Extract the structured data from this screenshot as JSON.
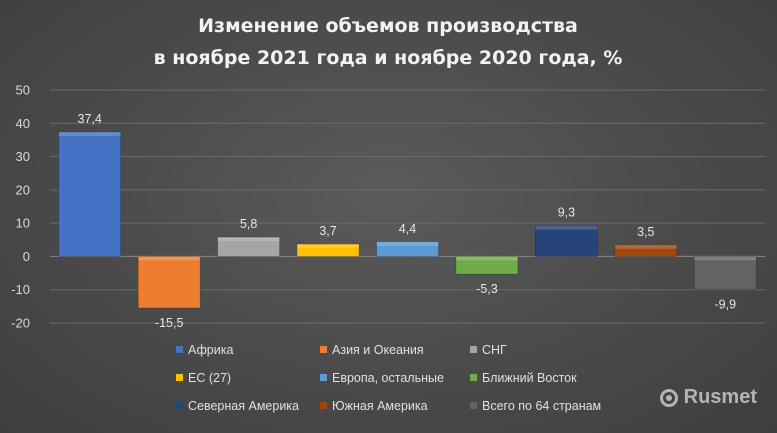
{
  "chart_data": {
    "type": "bar",
    "title": "Изменение объемов производства\nв ноябре 2021 года и ноябре 2020 года, %",
    "title_lines": [
      "Изменение объемов производства",
      "в ноябре 2021 года и ноябре 2020 года, %"
    ],
    "categories": [
      "Африка",
      "Азия и Океания",
      "СНГ",
      "ЕС (27)",
      "Европа, остальные",
      "Ближний Восток",
      "Северная Америка",
      "Южная Америка",
      "Всего по 64 странам"
    ],
    "values": [
      37.4,
      -15.5,
      5.8,
      3.7,
      4.4,
      -5.3,
      9.3,
      3.5,
      -9.9
    ],
    "data_labels": [
      "37,4",
      "-15,5",
      "5,8",
      "3,7",
      "4,4",
      "-5,3",
      "9,3",
      "3,5",
      "-9,9"
    ],
    "colors": [
      "#4472c4",
      "#ed7d31",
      "#a5a5a5",
      "#ffc000",
      "#5b9bd5",
      "#70ad47",
      "#264478",
      "#9e480e",
      "#636363"
    ],
    "ylim": [
      -20,
      50
    ],
    "yticks": [
      50,
      40,
      30,
      20,
      10,
      0,
      -10,
      -20
    ],
    "ytick_labels": [
      "50",
      "40",
      "30",
      "20",
      "10",
      "0",
      "-10",
      "-20"
    ],
    "xlabel": "",
    "ylabel": "",
    "grid": true,
    "legend_position": "bottom",
    "legend_columns": 3
  },
  "watermark": {
    "text": "Rusmet",
    "icon": "rusmet-logo-icon"
  }
}
